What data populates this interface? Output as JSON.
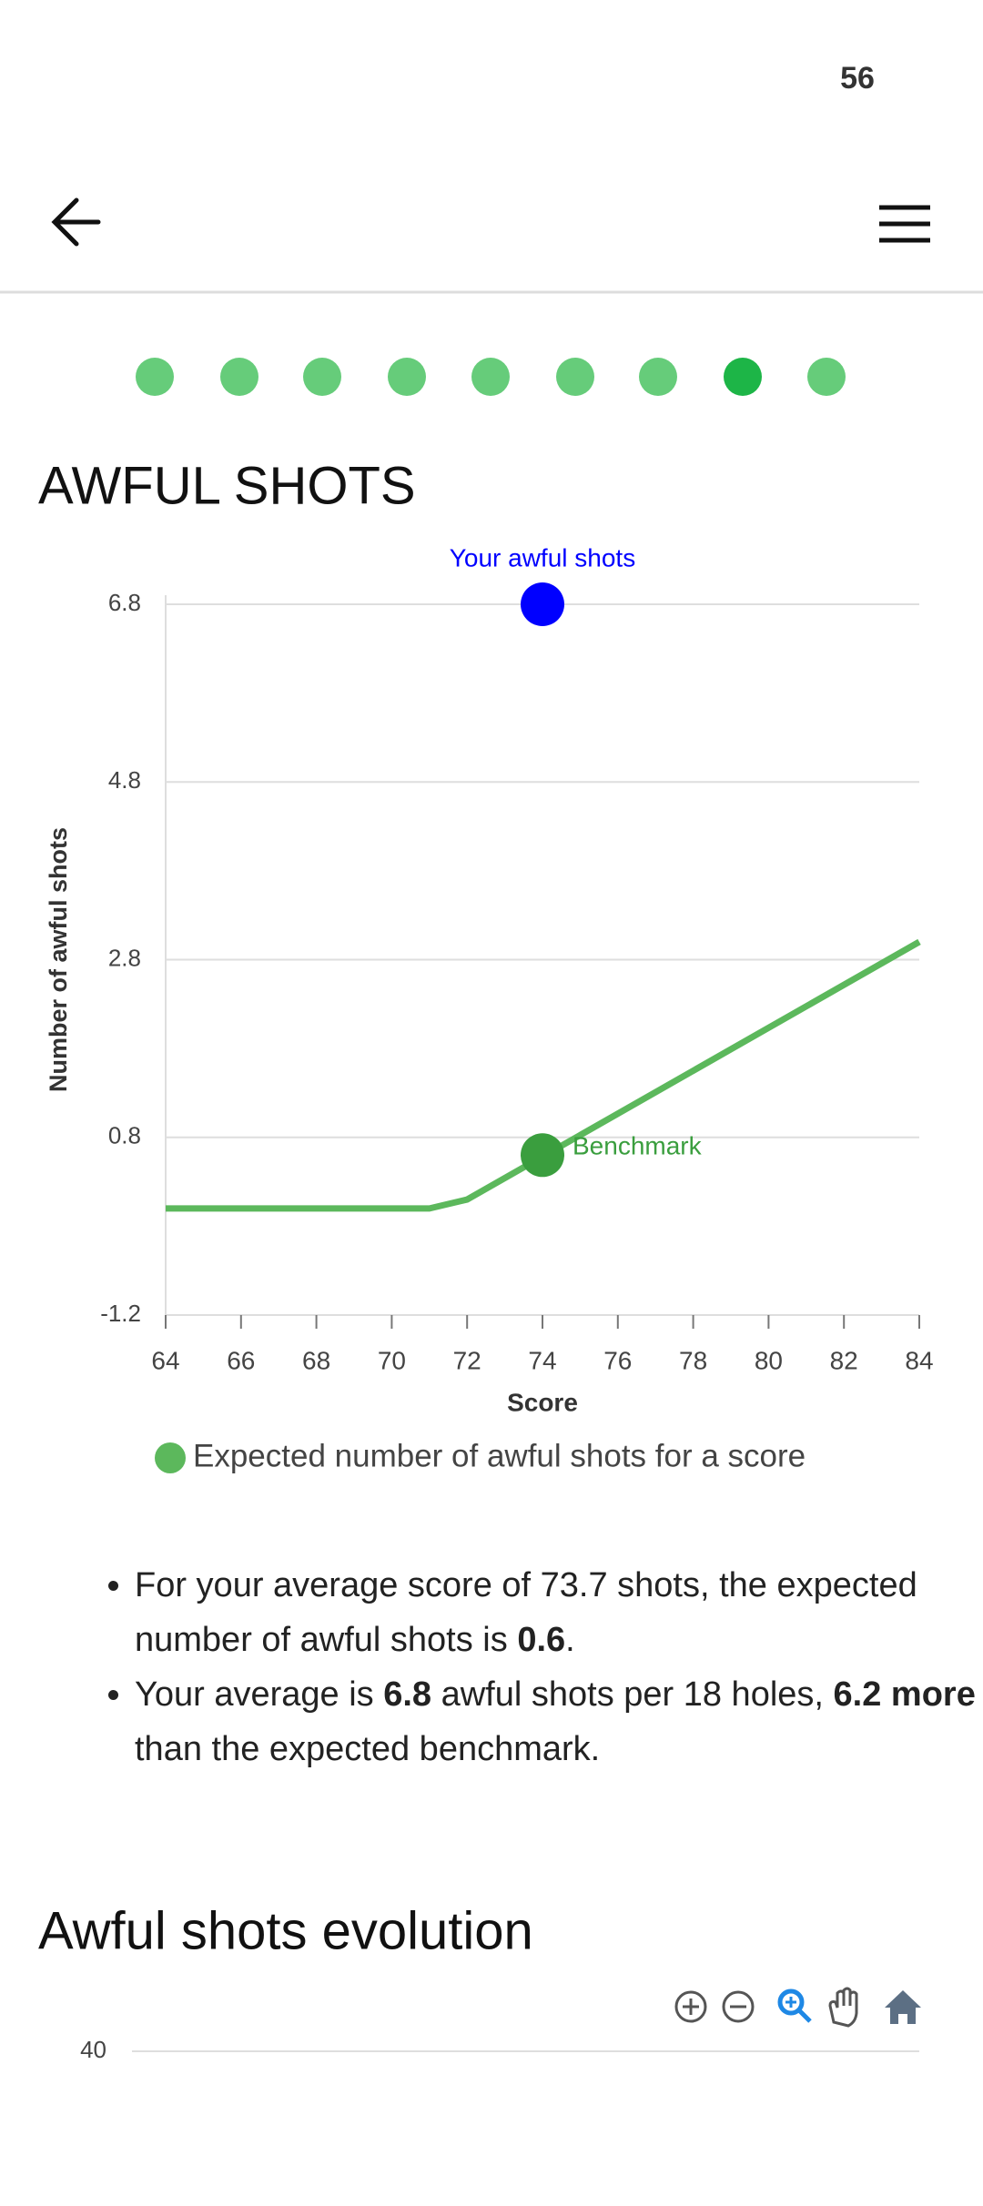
{
  "status_bar": {
    "time": "56"
  },
  "chart_data": [
    {
      "type": "line",
      "title": "AWFUL SHOTS",
      "xlabel": "Score",
      "ylabel": "Number of awful shots",
      "x": [
        64,
        71,
        72,
        84
      ],
      "series": [
        {
          "name": "Expected number of awful shots for a score",
          "color": "#5cb85c",
          "values": [
            0,
            0,
            0.1,
            3.0
          ]
        }
      ],
      "points": [
        {
          "label": "Your awful shots",
          "x": 74,
          "y": 6.8,
          "color": "#0000ff"
        },
        {
          "label": "Benchmark",
          "x": 74,
          "y": 0.6,
          "color": "#3a9e3e"
        }
      ],
      "xlim": [
        64,
        84
      ],
      "xticks": [
        64,
        66,
        68,
        70,
        72,
        74,
        76,
        78,
        80,
        82,
        84
      ],
      "ylim": [
        -1.2,
        6.8
      ],
      "yticks": [
        -1.2,
        0.8,
        2.8,
        4.8,
        6.8
      ],
      "grid": true
    },
    {
      "type": "line",
      "title": "Awful shots evolution",
      "yticks": [
        40
      ],
      "grid": true
    }
  ],
  "bullets": [
    [
      "For your average score of 73.7 shots, the expected number of awful shots is ",
      "0.6",
      "."
    ],
    [
      "Your average is ",
      "6.8",
      " awful shots per 18 holes, ",
      "6.2 more",
      " than the expected benchmark."
    ]
  ]
}
